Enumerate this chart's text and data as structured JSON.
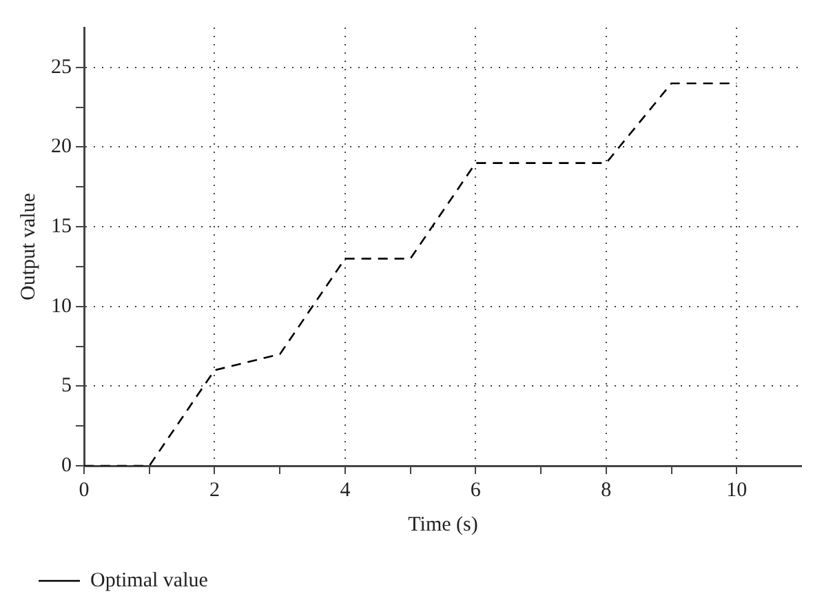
{
  "chart_data": {
    "type": "line",
    "xlabel": "Time (s)",
    "ylabel": "Output value",
    "x": [
      0,
      1,
      2,
      3,
      4,
      5,
      6,
      8,
      9,
      10
    ],
    "series": [
      {
        "name": "Optimal value",
        "color": "#000000",
        "values": [
          0,
          0,
          6,
          7,
          13,
          13,
          19,
          19,
          24,
          24
        ]
      }
    ],
    "xlim": [
      0,
      11
    ],
    "ylim": [
      0,
      27.5
    ],
    "xticks": [
      0,
      {
        "value": 1,
        "label": null
      },
      2,
      {
        "value": 3,
        "label": null
      },
      4,
      {
        "value": 5,
        "label": null
      },
      6,
      {
        "value": 7,
        "label": null
      },
      8,
      {
        "value": 9,
        "label": null
      },
      10
    ],
    "yticks": [
      0,
      {
        "value": 2.5,
        "label": null
      },
      5,
      {
        "value": 7.5,
        "label": null
      },
      10,
      {
        "value": 12.5,
        "label": null
      },
      15,
      {
        "value": 17.5,
        "label": null
      },
      20,
      {
        "value": 22.5,
        "label": null
      },
      25
    ],
    "grid": true,
    "legend": "bottom left",
    "marker": "none",
    "line_style": "dashed"
  }
}
